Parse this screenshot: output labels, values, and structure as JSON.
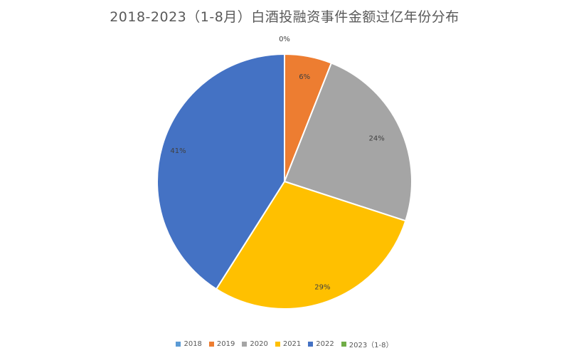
{
  "chart_data": {
    "type": "pie",
    "title": "2018-2023（1-8月）白酒投融资事件金额过亿年份分布",
    "categories": [
      "2018",
      "2019",
      "2020",
      "2021",
      "2022",
      "2023（1-8）"
    ],
    "values": [
      0,
      6,
      24,
      29,
      41,
      0
    ],
    "labels": [
      "0%",
      "6%",
      "24%",
      "29%",
      "41%",
      ""
    ],
    "colors": [
      "#5B9BD5",
      "#ED7D31",
      "#A5A5A5",
      "#FFC000",
      "#4472C4",
      "#70AD47"
    ],
    "legend_position": "bottom"
  }
}
